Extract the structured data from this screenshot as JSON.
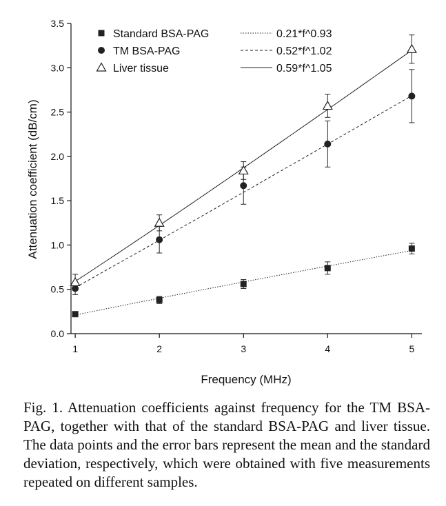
{
  "chart_data": {
    "type": "line",
    "xlabel": "Frequency (MHz)",
    "ylabel": "Attenuation coefficient (dB/cm)",
    "xlim": [
      0.95,
      5.12
    ],
    "ylim": [
      0,
      3.5
    ],
    "x_ticks": [
      "1",
      "2",
      "3",
      "4",
      "5"
    ],
    "y_ticks": [
      "0.0",
      "0.5",
      "1.0",
      "1.5",
      "2.0",
      "2.5",
      "3.0",
      "3.5"
    ],
    "legend_position": "top-left",
    "grid": false,
    "x": [
      1,
      2,
      3,
      4,
      5
    ],
    "series": [
      {
        "name": "Standard BSA-PAG",
        "marker": "square",
        "values": [
          0.22,
          0.38,
          0.56,
          0.74,
          0.96
        ],
        "errors": [
          0.02,
          0.04,
          0.05,
          0.07,
          0.06
        ],
        "fit_label": "0.21*f^0.93",
        "fit": {
          "a": 0.21,
          "b": 0.93
        },
        "fit_style": "dotted"
      },
      {
        "name": "TM BSA-PAG",
        "marker": "circle",
        "values": [
          0.51,
          1.06,
          1.67,
          2.14,
          2.68
        ],
        "errors": [
          0.07,
          0.15,
          0.21,
          0.26,
          0.3
        ],
        "fit_label": "0.52*f^1.02",
        "fit": {
          "a": 0.52,
          "b": 1.02
        },
        "fit_style": "dashed"
      },
      {
        "name": "Liver tissue",
        "marker": "triangle-open",
        "values": [
          0.58,
          1.25,
          1.84,
          2.57,
          3.21
        ],
        "errors": [
          0.09,
          0.09,
          0.1,
          0.13,
          0.16
        ],
        "fit_label": "0.59*f^1.05",
        "fit": {
          "a": 0.59,
          "b": 1.05
        },
        "fit_style": "solid"
      }
    ]
  },
  "caption": "Fig. 1. Attenuation coefficients against frequency for the TM BSA-PAG, together with that of the standard BSA-PAG and liver tissue. The data points and the error bars represent the mean and the standard deviation, respectively, which were obtained with five measurements repeated on different samples."
}
